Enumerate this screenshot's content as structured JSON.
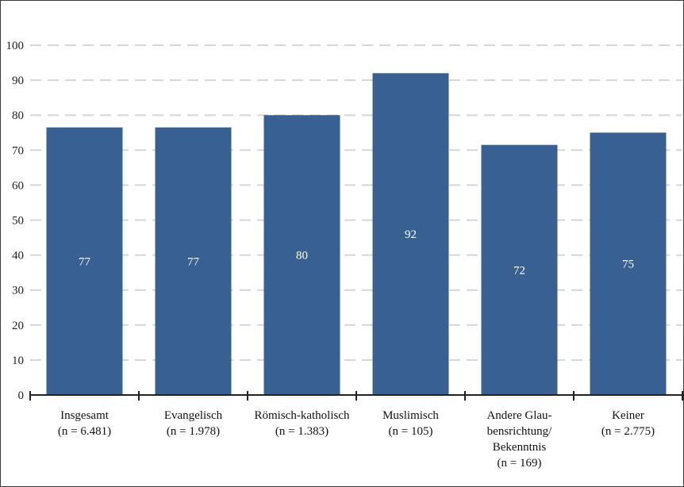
{
  "chart_data": {
    "type": "bar",
    "categories": [
      [
        "Insgesamt",
        "(n = 6.481)"
      ],
      [
        "Evangelisch",
        "(n = 1.978)"
      ],
      [
        "Römisch-katholisch",
        "(n = 1.383)"
      ],
      [
        "Muslimisch",
        "(n = 105)"
      ],
      [
        "Andere Glau-",
        "bensrichtung/",
        "Bekenntnis",
        "(n = 169)"
      ],
      [
        "Keiner",
        "(n = 2.775)"
      ]
    ],
    "values": [
      76.5,
      76.5,
      80,
      92,
      71.5,
      75
    ],
    "data_labels": [
      "77",
      "77",
      "80",
      "92",
      "72",
      "75"
    ],
    "ylim": [
      0,
      100
    ],
    "yticks": [
      "0",
      "10",
      "20",
      "30",
      "40",
      "50",
      "60",
      "70",
      "80",
      "90",
      "100"
    ],
    "grid": true,
    "bar_color": "#386191",
    "grid_color": "#d6d6d6",
    "axis_color": "#222222",
    "title": "",
    "xlabel": "",
    "ylabel": ""
  }
}
